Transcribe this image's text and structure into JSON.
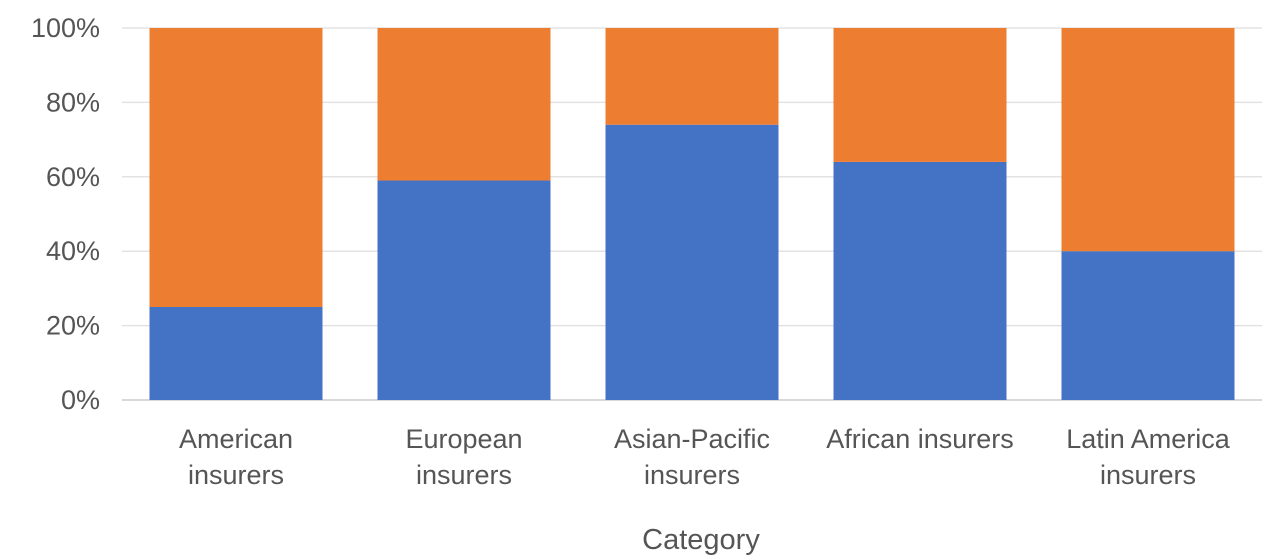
{
  "chart_data": {
    "type": "bar",
    "stacked": true,
    "percent_stacked": true,
    "title": "",
    "xlabel": "Category",
    "ylabel": "",
    "categories": [
      [
        "American",
        "insurers"
      ],
      [
        "European",
        "insurers"
      ],
      [
        "Asian-Pacific",
        "insurers"
      ],
      [
        "African insurers"
      ],
      [
        "Latin America",
        "insurers"
      ]
    ],
    "y_ticks": [
      "0%",
      "20%",
      "40%",
      "60%",
      "80%",
      "100%"
    ],
    "ylim": [
      0,
      100
    ],
    "grid": true,
    "legend": "none",
    "series": [
      {
        "values": [
          25,
          59,
          74,
          64,
          40
        ],
        "color": "#4472C4"
      },
      {
        "values": [
          75,
          41,
          26,
          36,
          60
        ],
        "color": "#ED7D31"
      }
    ]
  }
}
